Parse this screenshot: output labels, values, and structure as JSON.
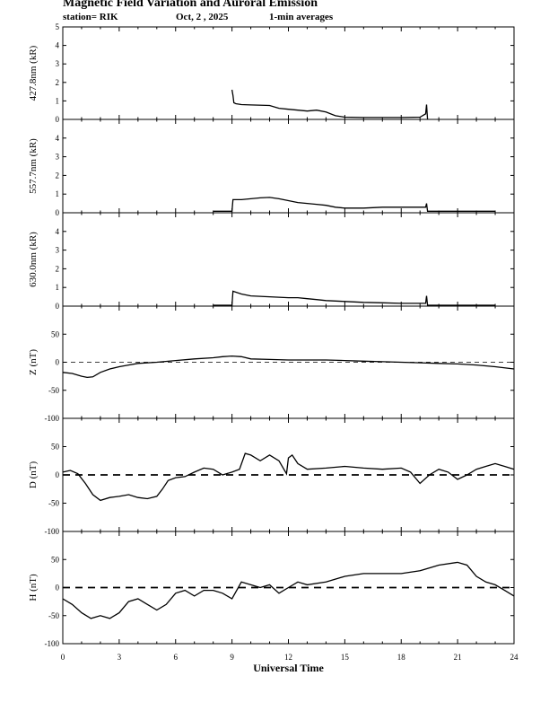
{
  "header": {
    "title": "Magnetic Field Variation and Auroral Emission",
    "station": "station= RIK",
    "date": "Oct, 2  , 2025",
    "averaging": "1-min averages"
  },
  "chart_data": [
    {
      "type": "line",
      "id": "emission-4278",
      "ylabel": "427.8nm (kR)",
      "ylim": [
        0,
        5
      ],
      "yticks": [
        0,
        1,
        2,
        3,
        4,
        5
      ],
      "zero_line": false,
      "x": [
        9.0,
        9.05,
        9.1,
        9.2,
        9.5,
        10,
        11,
        11.5,
        12,
        12.5,
        13,
        13.5,
        14,
        14.5,
        15,
        16,
        17,
        18,
        19,
        19.3,
        19.35,
        19.4
      ],
      "values": [
        1.6,
        1.3,
        0.9,
        0.85,
        0.8,
        0.78,
        0.75,
        0.6,
        0.55,
        0.5,
        0.45,
        0.5,
        0.4,
        0.2,
        0.12,
        0.1,
        0.1,
        0.1,
        0.12,
        0.3,
        0.8,
        0.0
      ]
    },
    {
      "type": "line",
      "id": "emission-5577",
      "ylabel": "557.7nm (kR)",
      "ylim": [
        0,
        5
      ],
      "yticks": [
        0,
        1,
        2,
        3,
        4
      ],
      "zero_line": false,
      "x": [
        8.0,
        9.0,
        9.05,
        9.5,
        10,
        10.5,
        11,
        11.5,
        12,
        12.5,
        13,
        13.5,
        14,
        14.5,
        15,
        16,
        17,
        18,
        19,
        19.3,
        19.35,
        19.4,
        23.0
      ],
      "values": [
        0.08,
        0.08,
        0.7,
        0.7,
        0.75,
        0.8,
        0.82,
        0.75,
        0.65,
        0.55,
        0.5,
        0.45,
        0.4,
        0.3,
        0.25,
        0.25,
        0.3,
        0.3,
        0.3,
        0.3,
        0.5,
        0.08,
        0.08
      ]
    },
    {
      "type": "line",
      "id": "emission-6300",
      "ylabel": "630.0nm (kR)",
      "ylim": [
        0,
        5
      ],
      "yticks": [
        0,
        1,
        2,
        3,
        4
      ],
      "zero_line": false,
      "x": [
        8.0,
        9.0,
        9.05,
        9.5,
        10,
        11,
        12,
        12.5,
        13,
        13.5,
        14,
        15,
        16,
        17,
        18,
        19,
        19.3,
        19.35,
        19.4,
        23.0
      ],
      "values": [
        0.05,
        0.05,
        0.8,
        0.65,
        0.55,
        0.5,
        0.45,
        0.45,
        0.4,
        0.35,
        0.3,
        0.25,
        0.2,
        0.18,
        0.15,
        0.15,
        0.15,
        0.55,
        0.05,
        0.05
      ]
    },
    {
      "type": "line",
      "id": "z-field",
      "ylabel": "Z (nT)",
      "ylim": [
        -100,
        100
      ],
      "yticks": [
        -100,
        -50,
        0,
        50
      ],
      "zero_line": true,
      "x": [
        0,
        0.5,
        1,
        1.3,
        1.6,
        2,
        2.5,
        3,
        3.5,
        4,
        5,
        6,
        7,
        8,
        8.5,
        9,
        9.5,
        10,
        11,
        12,
        13,
        14,
        15,
        16,
        17,
        18,
        19,
        20,
        21,
        22,
        23,
        24
      ],
      "values": [
        -18,
        -20,
        -25,
        -27,
        -26,
        -18,
        -12,
        -8,
        -5,
        -2,
        0,
        3,
        6,
        8,
        10,
        11,
        10,
        6,
        5,
        4,
        4,
        4,
        3,
        2,
        1,
        0,
        -1,
        -2,
        -3,
        -5,
        -8,
        -12
      ]
    },
    {
      "type": "line",
      "id": "d-field",
      "ylabel": "D (nT)",
      "ylim": [
        -100,
        100
      ],
      "yticks": [
        -100,
        -50,
        0,
        50
      ],
      "zero_line": true,
      "x": [
        0,
        0.4,
        0.8,
        1.2,
        1.6,
        2.0,
        2.5,
        3.0,
        3.5,
        4.0,
        4.5,
        5.0,
        5.3,
        5.6,
        6.0,
        6.5,
        7.0,
        7.5,
        8.0,
        8.5,
        9.0,
        9.4,
        9.7,
        10.0,
        10.5,
        11.0,
        11.5,
        11.9,
        12.0,
        12.2,
        12.5,
        13.0,
        14.0,
        15.0,
        16.0,
        17.0,
        18.0,
        18.5,
        19.0,
        19.5,
        20.0,
        20.5,
        21.0,
        21.5,
        22.0,
        22.5,
        23.0,
        23.5,
        24.0
      ],
      "values": [
        5,
        8,
        2,
        -15,
        -35,
        -45,
        -40,
        -38,
        -35,
        -40,
        -42,
        -38,
        -25,
        -10,
        -5,
        -3,
        5,
        12,
        10,
        0,
        5,
        10,
        38,
        35,
        25,
        35,
        25,
        2,
        30,
        35,
        20,
        10,
        12,
        15,
        12,
        10,
        12,
        5,
        -15,
        0,
        10,
        5,
        -8,
        0,
        10,
        15,
        20,
        15,
        10
      ]
    },
    {
      "type": "line",
      "id": "h-field",
      "ylabel": "H (nT)",
      "ylim": [
        -100,
        100
      ],
      "yticks": [
        -100,
        -50,
        0,
        50
      ],
      "zero_line": true,
      "x": [
        0,
        0.5,
        1.0,
        1.5,
        2.0,
        2.5,
        3.0,
        3.5,
        4.0,
        4.5,
        5.0,
        5.5,
        6.0,
        6.5,
        7.0,
        7.5,
        8.0,
        8.5,
        9.0,
        9.5,
        10.0,
        10.5,
        11.0,
        11.5,
        12.0,
        12.5,
        13.0,
        14.0,
        15.0,
        16.0,
        17.0,
        18.0,
        19.0,
        20.0,
        21.0,
        21.5,
        22.0,
        22.5,
        23.0,
        23.5,
        24.0
      ],
      "values": [
        -20,
        -30,
        -45,
        -55,
        -50,
        -55,
        -45,
        -25,
        -20,
        -30,
        -40,
        -30,
        -10,
        -5,
        -15,
        -5,
        -5,
        -10,
        -20,
        10,
        5,
        0,
        5,
        -10,
        0,
        10,
        5,
        10,
        20,
        25,
        25,
        25,
        30,
        40,
        45,
        40,
        20,
        10,
        5,
        -5,
        -15
      ]
    }
  ],
  "x_axis": {
    "label": "Universal Time",
    "ticks": [
      "0",
      "3",
      "6",
      "9",
      "12",
      "15",
      "18",
      "21",
      "24"
    ],
    "xlim": [
      0,
      24
    ]
  }
}
